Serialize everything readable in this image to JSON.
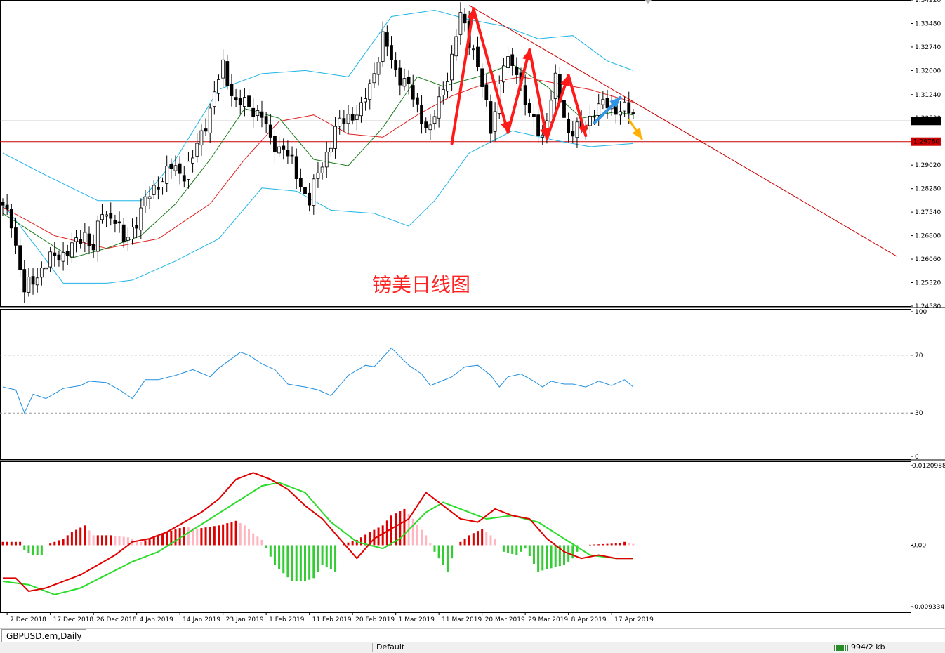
{
  "symbol_tab": "GBPUSD.em,Daily",
  "status": {
    "profile": "Default",
    "traffic": "994/2 kb"
  },
  "colors": {
    "candle_up": "#ffffff",
    "candle_down": "#000000",
    "outline": "#000000",
    "bb": "#1fb5e6",
    "ma_slow": "#e02020",
    "ma_fast": "#1a7a1a",
    "trendline": "#cc0000",
    "support": "#cc0000",
    "current": "#a0a0a0",
    "zigzag": "#ff1a1a",
    "blue_arrow": "#2f95e6",
    "orange_arrow": "#ffb000",
    "rsi": "#1f8fe0",
    "macd_line": "#e00000",
    "signal_line": "#2bdc2b",
    "hist_pos_strong": "#dd0000",
    "hist_pos_weak": "#ffb6c1",
    "hist_neg": "#33cc33"
  },
  "annotation": "镑美日线图",
  "chart_data": [
    {
      "type": "candlestick",
      "symbol": "GBPUSD.em",
      "timeframe": "Daily",
      "ylim": [
        1.2458,
        1.3422
      ],
      "y_ticks": [
        "1.34220",
        "1.33480",
        "1.32740",
        "1.32000",
        "1.31240",
        "1.30500",
        "1.29760",
        "1.29020",
        "1.28280",
        "1.27540",
        "1.26800",
        "1.26060",
        "1.25320",
        "1.24580"
      ],
      "current_price": "1.30411",
      "support_level": "1.29760",
      "x_labels": [
        "7 Dec 2018",
        "17 Dec 2018",
        "26 Dec 2018",
        "4 Jan 2019",
        "14 Jan 2019",
        "23 Jan 2019",
        "1 Feb 2019",
        "11 Feb 2019",
        "20 Feb 2019",
        "1 Mar 2019",
        "11 Mar 2019",
        "20 Mar 2019",
        "29 Mar 2019",
        "8 Apr 2019",
        "17 Apr 2019"
      ],
      "close_anchors": [
        [
          0,
          1.276
        ],
        [
          2,
          1.273
        ],
        [
          5,
          1.25
        ],
        [
          9,
          1.258
        ],
        [
          13,
          1.262
        ],
        [
          17,
          1.265
        ],
        [
          19,
          1.269
        ],
        [
          21,
          1.264
        ],
        [
          23,
          1.275
        ],
        [
          26,
          1.274
        ],
        [
          28,
          1.265
        ],
        [
          32,
          1.276
        ],
        [
          36,
          1.285
        ],
        [
          39,
          1.289
        ],
        [
          42,
          1.288
        ],
        [
          44,
          1.292
        ],
        [
          47,
          1.304
        ],
        [
          51,
          1.321
        ],
        [
          54,
          1.31
        ],
        [
          58,
          1.308
        ],
        [
          60,
          1.306
        ],
        [
          62,
          1.297
        ],
        [
          65,
          1.296
        ],
        [
          68,
          1.287
        ],
        [
          71,
          1.279
        ],
        [
          74,
          1.291
        ],
        [
          77,
          1.301
        ],
        [
          80,
          1.306
        ],
        [
          83,
          1.307
        ],
        [
          86,
          1.32
        ],
        [
          88,
          1.33
        ],
        [
          91,
          1.32
        ],
        [
          93,
          1.317
        ],
        [
          96,
          1.308
        ],
        [
          99,
          1.301
        ],
        [
          101,
          1.31
        ],
        [
          104,
          1.324
        ],
        [
          106,
          1.337
        ],
        [
          109,
          1.327
        ],
        [
          113,
          1.302
        ],
        [
          116,
          1.322
        ],
        [
          119,
          1.321
        ],
        [
          122,
          1.305
        ],
        [
          125,
          1.3
        ],
        [
          128,
          1.316
        ],
        [
          131,
          1.301
        ],
        [
          134,
          1.301
        ],
        [
          137,
          1.308
        ],
        [
          140,
          1.309
        ],
        [
          143,
          1.308
        ],
        [
          146,
          1.306
        ]
      ],
      "bb_upper_anchors": [
        [
          0,
          1.294
        ],
        [
          10,
          1.287
        ],
        [
          22,
          1.279
        ],
        [
          32,
          1.279
        ],
        [
          40,
          1.292
        ],
        [
          50,
          1.314
        ],
        [
          60,
          1.319
        ],
        [
          70,
          1.32
        ],
        [
          80,
          1.318
        ],
        [
          90,
          1.337
        ],
        [
          100,
          1.339
        ],
        [
          108,
          1.336
        ],
        [
          116,
          1.334
        ],
        [
          124,
          1.33
        ],
        [
          132,
          1.331
        ],
        [
          140,
          1.323
        ],
        [
          146,
          1.32
        ]
      ],
      "bb_lower_anchors": [
        [
          0,
          1.278
        ],
        [
          8,
          1.264
        ],
        [
          14,
          1.253
        ],
        [
          24,
          1.253
        ],
        [
          30,
          1.254
        ],
        [
          40,
          1.26
        ],
        [
          50,
          1.267
        ],
        [
          60,
          1.283
        ],
        [
          68,
          1.282
        ],
        [
          76,
          1.276
        ],
        [
          86,
          1.275
        ],
        [
          94,
          1.271
        ],
        [
          100,
          1.279
        ],
        [
          108,
          1.294
        ],
        [
          118,
          1.301
        ],
        [
          128,
          1.298
        ],
        [
          136,
          1.296
        ],
        [
          146,
          1.297
        ]
      ],
      "ma_fast_anchors": [
        [
          0,
          1.275
        ],
        [
          8,
          1.268
        ],
        [
          16,
          1.261
        ],
        [
          24,
          1.264
        ],
        [
          32,
          1.268
        ],
        [
          40,
          1.278
        ],
        [
          48,
          1.292
        ],
        [
          56,
          1.308
        ],
        [
          64,
          1.305
        ],
        [
          72,
          1.292
        ],
        [
          80,
          1.29
        ],
        [
          88,
          1.302
        ],
        [
          96,
          1.318
        ],
        [
          102,
          1.315
        ],
        [
          110,
          1.318
        ],
        [
          118,
          1.322
        ],
        [
          126,
          1.315
        ],
        [
          134,
          1.305
        ],
        [
          142,
          1.307
        ],
        [
          146,
          1.306
        ]
      ],
      "ma_slow_anchors": [
        [
          0,
          1.277
        ],
        [
          12,
          1.268
        ],
        [
          24,
          1.264
        ],
        [
          36,
          1.267
        ],
        [
          48,
          1.278
        ],
        [
          56,
          1.292
        ],
        [
          64,
          1.304
        ],
        [
          72,
          1.306
        ],
        [
          80,
          1.3
        ],
        [
          88,
          1.299
        ],
        [
          96,
          1.306
        ],
        [
          104,
          1.312
        ],
        [
          112,
          1.316
        ],
        [
          120,
          1.318
        ],
        [
          128,
          1.316
        ],
        [
          136,
          1.314
        ],
        [
          146,
          1.31
        ]
      ],
      "trendline": {
        "from": [
          108,
          1.3405
        ],
        "to": [
          207,
          1.2615
        ]
      },
      "zigzag_points": [
        [
          104,
          1.297
        ],
        [
          109,
          1.3395
        ],
        [
          117,
          1.3005
        ],
        [
          122,
          1.3265
        ],
        [
          126,
          1.2985
        ],
        [
          131,
          1.3185
        ],
        [
          135,
          1.2995
        ]
      ],
      "blue_arrow": {
        "from": [
          137,
          1.3035
        ],
        "to": [
          143,
          1.3115
        ]
      },
      "orange_arrow": {
        "from": [
          145,
          1.3045
        ],
        "to": [
          148,
          1.2985
        ]
      }
    },
    {
      "type": "line",
      "name": "RSI",
      "ylim": [
        0,
        100
      ],
      "levels": [
        30,
        70
      ],
      "y_ticks": [
        "100",
        "70",
        "30",
        "0"
      ],
      "anchors": [
        [
          0,
          48
        ],
        [
          3,
          46
        ],
        [
          5,
          30
        ],
        [
          7,
          43
        ],
        [
          10,
          40
        ],
        [
          14,
          47
        ],
        [
          18,
          49
        ],
        [
          20,
          52
        ],
        [
          24,
          51
        ],
        [
          27,
          46
        ],
        [
          30,
          40
        ],
        [
          33,
          53
        ],
        [
          36,
          53
        ],
        [
          40,
          56
        ],
        [
          44,
          60
        ],
        [
          48,
          55
        ],
        [
          50,
          61
        ],
        [
          55,
          72
        ],
        [
          57,
          70
        ],
        [
          60,
          64
        ],
        [
          63,
          60
        ],
        [
          66,
          50
        ],
        [
          70,
          48
        ],
        [
          73,
          46
        ],
        [
          76,
          42
        ],
        [
          80,
          56
        ],
        [
          84,
          63
        ],
        [
          86,
          62
        ],
        [
          90,
          75
        ],
        [
          94,
          63
        ],
        [
          97,
          57
        ],
        [
          99,
          49
        ],
        [
          104,
          55
        ],
        [
          107,
          62
        ],
        [
          110,
          63
        ],
        [
          113,
          56
        ],
        [
          115,
          48
        ],
        [
          117,
          55
        ],
        [
          120,
          57
        ],
        [
          123,
          52
        ],
        [
          125,
          48
        ],
        [
          127,
          52
        ],
        [
          130,
          50
        ],
        [
          132,
          50
        ],
        [
          135,
          48
        ],
        [
          138,
          52
        ],
        [
          141,
          49
        ],
        [
          144,
          53
        ],
        [
          146,
          48
        ]
      ]
    },
    {
      "type": "line+bar",
      "name": "MACD",
      "ylim": [
        -0.009334,
        0.0120988
      ],
      "y_ticks": [
        "0.0120988",
        "0.00",
        "-0.009334"
      ],
      "macd_anchors": [
        [
          0,
          -0.005
        ],
        [
          3,
          -0.005
        ],
        [
          6,
          -0.007
        ],
        [
          10,
          -0.0065
        ],
        [
          14,
          -0.0055
        ],
        [
          18,
          -0.0045
        ],
        [
          22,
          -0.003
        ],
        [
          26,
          -0.0015
        ],
        [
          30,
          0.0005
        ],
        [
          34,
          0.001
        ],
        [
          38,
          0.002
        ],
        [
          42,
          0.0035
        ],
        [
          46,
          0.005
        ],
        [
          50,
          0.007
        ],
        [
          54,
          0.01
        ],
        [
          58,
          0.011
        ],
        [
          62,
          0.01
        ],
        [
          66,
          0.0085
        ],
        [
          70,
          0.006
        ],
        [
          74,
          0.004
        ],
        [
          78,
          0.001
        ],
        [
          82,
          -0.002
        ],
        [
          86,
          0.001
        ],
        [
          90,
          0.0025
        ],
        [
          94,
          0.004
        ],
        [
          98,
          0.008
        ],
        [
          102,
          0.006
        ],
        [
          106,
          0.004
        ],
        [
          110,
          0.0035
        ],
        [
          114,
          0.0055
        ],
        [
          118,
          0.0045
        ],
        [
          122,
          0.004
        ],
        [
          126,
          0.001
        ],
        [
          130,
          -0.001
        ],
        [
          134,
          -0.002
        ],
        [
          138,
          -0.0015
        ],
        [
          142,
          -0.002
        ],
        [
          146,
          -0.002
        ]
      ],
      "signal_anchors": [
        [
          0,
          -0.0055
        ],
        [
          6,
          -0.006
        ],
        [
          12,
          -0.0075
        ],
        [
          18,
          -0.0065
        ],
        [
          24,
          -0.0045
        ],
        [
          30,
          -0.0025
        ],
        [
          36,
          -0.001
        ],
        [
          42,
          0.0015
        ],
        [
          48,
          0.004
        ],
        [
          54,
          0.0065
        ],
        [
          60,
          0.009
        ],
        [
          64,
          0.0095
        ],
        [
          70,
          0.008
        ],
        [
          76,
          0.0035
        ],
        [
          82,
          0.0005
        ],
        [
          88,
          -0.0005
        ],
        [
          92,
          0.001
        ],
        [
          98,
          0.005
        ],
        [
          102,
          0.0065
        ],
        [
          108,
          0.005
        ],
        [
          112,
          0.004
        ],
        [
          118,
          0.0045
        ],
        [
          124,
          0.0035
        ],
        [
          130,
          0.001
        ],
        [
          136,
          -0.0015
        ],
        [
          142,
          -0.002
        ],
        [
          146,
          -0.002
        ]
      ],
      "histogram_anchors": [
        [
          0,
          0.0005
        ],
        [
          4,
          0.0005
        ],
        [
          5,
          -0.0008
        ],
        [
          7,
          -0.0015
        ],
        [
          9,
          -0.0015
        ],
        [
          10,
          0
        ],
        [
          14,
          0.001
        ],
        [
          16,
          0.002
        ],
        [
          19,
          0.003
        ],
        [
          21,
          0.0015
        ],
        [
          25,
          0.0015
        ],
        [
          29,
          0.0012
        ],
        [
          32,
          0.0005
        ],
        [
          34,
          0.001
        ],
        [
          38,
          0.002
        ],
        [
          42,
          0.0028
        ],
        [
          45,
          0.0025
        ],
        [
          50,
          0.003
        ],
        [
          54,
          0.0037
        ],
        [
          56,
          0.003
        ],
        [
          58,
          0.0018
        ],
        [
          60,
          0.0008
        ],
        [
          63,
          -0.003
        ],
        [
          67,
          -0.0055
        ],
        [
          70,
          -0.0055
        ],
        [
          72,
          -0.005
        ],
        [
          74,
          -0.003
        ],
        [
          77,
          -0.004
        ],
        [
          78,
          0
        ],
        [
          82,
          0.0008
        ],
        [
          85,
          0.002
        ],
        [
          88,
          0.003
        ],
        [
          90,
          0.0045
        ],
        [
          93,
          0.0055
        ],
        [
          95,
          0.004
        ],
        [
          98,
          0.0015
        ],
        [
          100,
          -0.001
        ],
        [
          102,
          -0.003
        ],
        [
          103,
          -0.004
        ],
        [
          105,
          0
        ],
        [
          108,
          0.0015
        ],
        [
          111,
          0.0025
        ],
        [
          114,
          0.001
        ],
        [
          116,
          -0.001
        ],
        [
          119,
          -0.0015
        ],
        [
          121,
          -0.0005
        ],
        [
          124,
          -0.004
        ],
        [
          127,
          -0.0035
        ],
        [
          130,
          -0.003
        ],
        [
          132,
          -0.002
        ],
        [
          134,
          0
        ],
        [
          143,
          0.0003
        ],
        [
          144,
          0.0005
        ],
        [
          146,
          0.0002
        ]
      ]
    }
  ]
}
